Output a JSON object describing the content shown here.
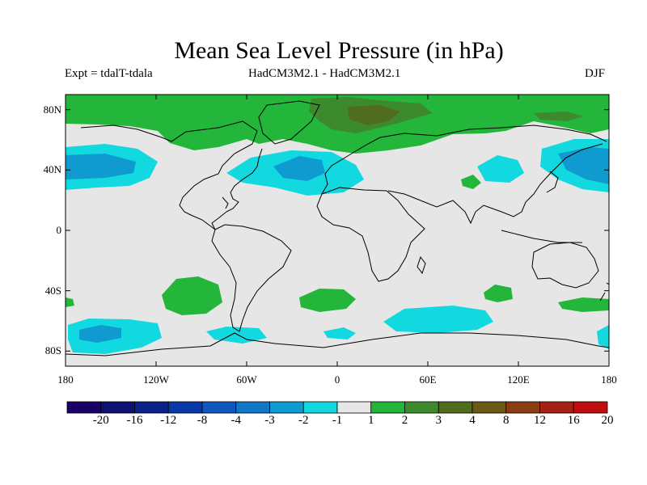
{
  "title": "Mean Sea Level Pressure (in hPa)",
  "subtitle_left": "Expt = tdalT-tdala",
  "subtitle_center": "HadCM3M2.1 - HadCM3M2.1",
  "subtitle_right": "DJF",
  "lat_labels": [
    "80N",
    "40N",
    "0",
    "40S",
    "80S"
  ],
  "lon_labels": [
    "180",
    "120W",
    "60W",
    "0",
    "60E",
    "120E",
    "180"
  ],
  "colorbar": {
    "labels": [
      "-20",
      "-16",
      "-12",
      "-8",
      "-4",
      "-3",
      "-2",
      "-1",
      "1",
      "2",
      "3",
      "4",
      "8",
      "12",
      "16",
      "20"
    ],
    "colors": [
      "#1a0066",
      "#0d1170",
      "#0a2288",
      "#0838a4",
      "#1058c0",
      "#1276c6",
      "#0f9ad0",
      "#12d8e0",
      "#e6e6e6",
      "#24b53b",
      "#3d8a2e",
      "#506c1e",
      "#6b5a16",
      "#8a3d12",
      "#a52010",
      "#c00e0e"
    ]
  },
  "colors": {
    "background": "#e6e6e6",
    "land_outline": "#000000"
  }
}
